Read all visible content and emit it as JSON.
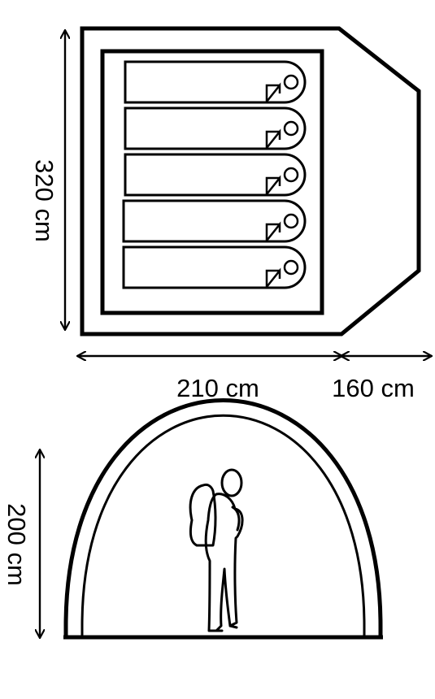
{
  "floor_plan": {
    "depth_label": "320 cm",
    "inner_width_label": "210 cm",
    "vestibule_width_label": "160 cm",
    "sleeping_bags": 5
  },
  "elevation": {
    "height_label": "200 cm"
  },
  "colors": {
    "line": "#000000",
    "background": "#ffffff"
  }
}
